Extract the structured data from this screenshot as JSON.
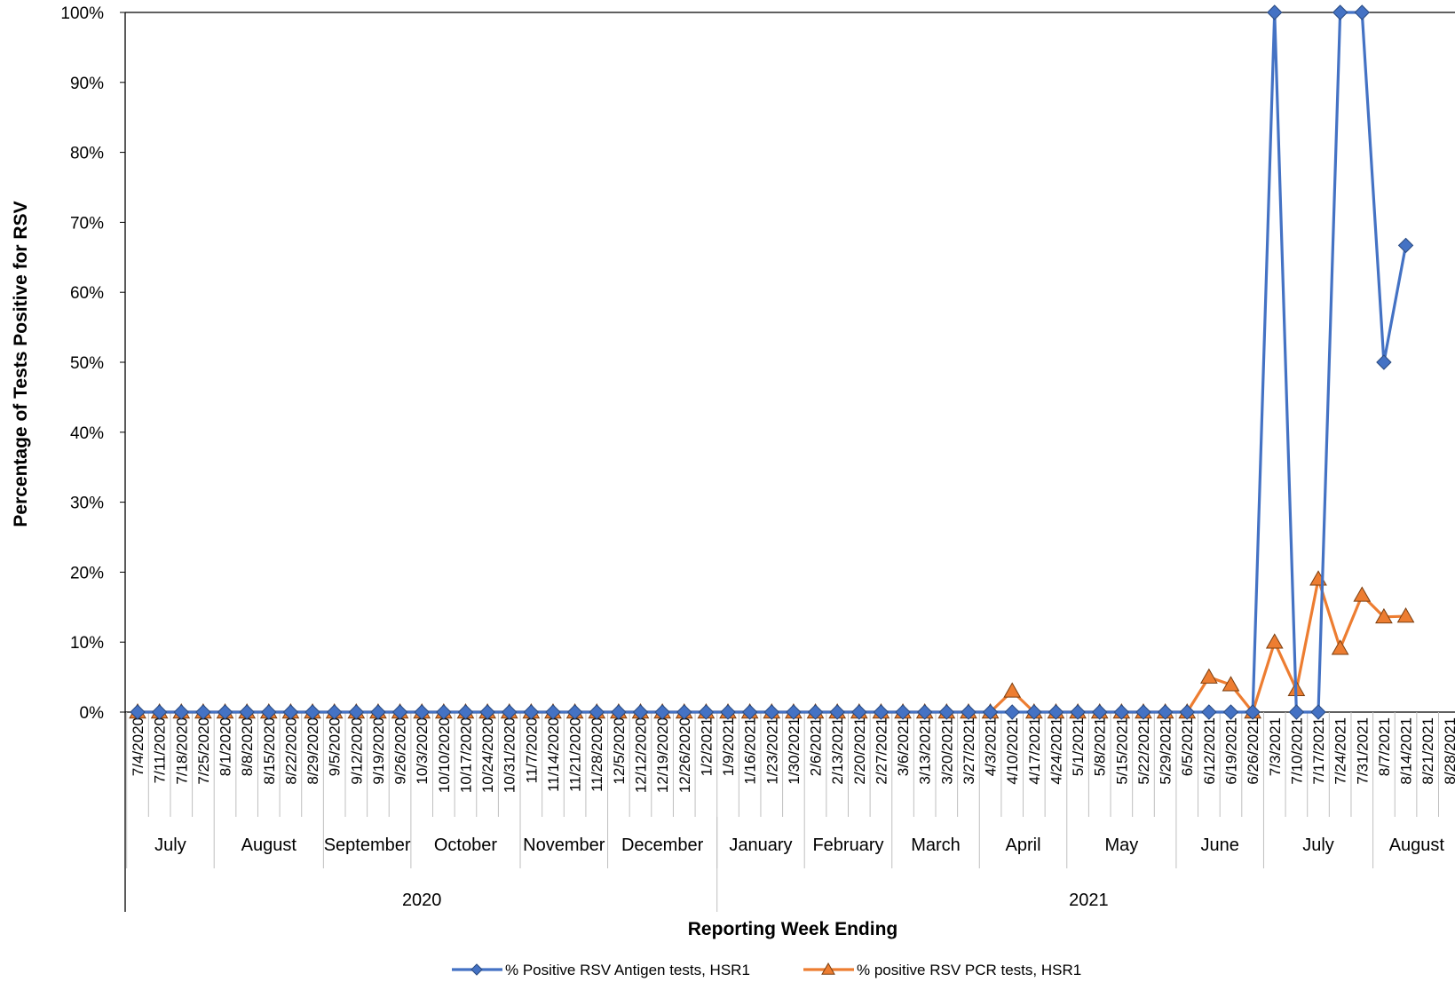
{
  "chart_data": {
    "type": "line",
    "xlabel": "Reporting Week Ending",
    "ylabel": "Percentage of Tests Positive for RSV",
    "ylim": [
      0,
      100
    ],
    "y_ticks": [
      "0%",
      "10%",
      "20%",
      "30%",
      "40%",
      "50%",
      "60%",
      "70%",
      "80%",
      "90%",
      "100%"
    ],
    "grid": false,
    "legend_position": "bottom",
    "categories": [
      "7/4/2020",
      "7/11/2020",
      "7/18/2020",
      "7/25/2020",
      "8/1/2020",
      "8/8/2020",
      "8/15/2020",
      "8/22/2020",
      "8/29/2020",
      "9/5/2020",
      "9/12/2020",
      "9/19/2020",
      "9/26/2020",
      "10/3/2020",
      "10/10/2020",
      "10/17/2020",
      "10/24/2020",
      "10/31/2020",
      "11/7/2020",
      "11/14/2020",
      "11/21/2020",
      "11/28/2020",
      "12/5/2020",
      "12/12/2020",
      "12/19/2020",
      "12/26/2020",
      "1/2/2021",
      "1/9/2021",
      "1/16/2021",
      "1/23/2021",
      "1/30/2021",
      "2/6/2021",
      "2/13/2021",
      "2/20/2021",
      "2/27/2021",
      "3/6/2021",
      "3/13/2021",
      "3/20/2021",
      "3/27/2021",
      "4/3/2021",
      "4/10/2021",
      "4/17/2021",
      "4/24/2021",
      "5/1/2021",
      "5/8/2021",
      "5/15/2021",
      "5/22/2021",
      "5/29/2021",
      "6/5/2021",
      "6/12/2021",
      "6/19/2021",
      "6/26/2021",
      "7/3/2021",
      "7/10/2021",
      "7/17/2021",
      "7/24/2021",
      "7/31/2021",
      "8/7/2021",
      "8/14/2021",
      "8/21/2021",
      "8/28/2021"
    ],
    "month_groups": [
      {
        "label": "July",
        "start": 0,
        "count": 4
      },
      {
        "label": "August",
        "start": 4,
        "count": 5
      },
      {
        "label": "September",
        "start": 9,
        "count": 4
      },
      {
        "label": "October",
        "start": 13,
        "count": 5
      },
      {
        "label": "November",
        "start": 18,
        "count": 4
      },
      {
        "label": "December",
        "start": 22,
        "count": 5
      },
      {
        "label": "January",
        "start": 27,
        "count": 4
      },
      {
        "label": "February",
        "start": 31,
        "count": 4
      },
      {
        "label": "March",
        "start": 35,
        "count": 4
      },
      {
        "label": "April",
        "start": 39,
        "count": 4
      },
      {
        "label": "May",
        "start": 43,
        "count": 5
      },
      {
        "label": "June",
        "start": 48,
        "count": 4
      },
      {
        "label": "July",
        "start": 52,
        "count": 5
      },
      {
        "label": "August",
        "start": 57,
        "count": 4
      }
    ],
    "year_groups": [
      {
        "label": "2020",
        "start": 0,
        "count": 27
      },
      {
        "label": "2021",
        "start": 27,
        "count": 34
      }
    ],
    "series": [
      {
        "name": "% Positive RSV Antigen tests, HSR1",
        "color": "#4472C4",
        "marker": "diamond",
        "values": [
          0,
          0,
          0,
          0,
          0,
          0,
          0,
          0,
          0,
          0,
          0,
          0,
          0,
          0,
          0,
          0,
          0,
          0,
          0,
          0,
          0,
          0,
          0,
          0,
          0,
          0,
          0,
          0,
          0,
          0,
          0,
          0,
          0,
          0,
          0,
          0,
          0,
          0,
          0,
          0,
          0,
          0,
          0,
          0,
          0,
          0,
          0,
          0,
          0,
          0,
          0,
          0,
          100,
          0,
          0,
          100,
          100,
          50,
          66.7,
          null,
          null
        ]
      },
      {
        "name": "% positive RSV PCR tests, HSR1",
        "color": "#ED7D31",
        "marker": "triangle",
        "values": [
          0,
          0,
          0,
          0,
          0,
          0,
          0,
          0,
          0,
          0,
          0,
          0,
          0,
          0,
          0,
          0,
          0,
          0,
          0,
          0,
          0,
          0,
          0,
          0,
          0,
          0,
          0,
          0,
          0,
          0,
          0,
          0,
          0,
          0,
          0,
          0,
          0,
          0,
          0,
          0,
          3,
          0,
          0,
          0,
          0,
          0,
          0,
          0,
          0,
          5,
          3.9,
          0,
          10,
          3.2,
          19,
          9.1,
          16.7,
          13.6,
          13.7,
          null,
          null
        ]
      }
    ]
  }
}
